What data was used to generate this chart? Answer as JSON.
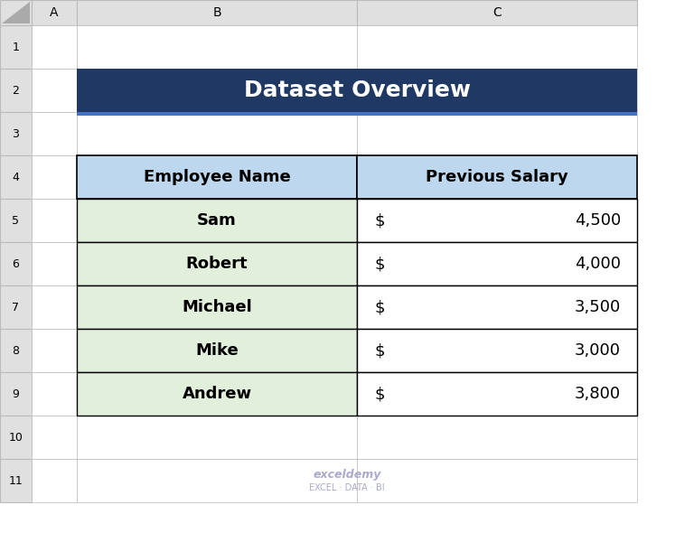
{
  "title": "Dataset Overview",
  "title_bg": "#1F3864",
  "title_color": "#FFFFFF",
  "header_bg": "#BDD7EE",
  "header_color": "#000000",
  "row_bg_name": "#E2EFDA",
  "row_bg_salary_left": "#FFFFFF",
  "border_color": "#000000",
  "columns": [
    "Employee Name",
    "Previous Salary"
  ],
  "employees": [
    "Sam",
    "Robert",
    "Michael",
    "Mike",
    "Andrew"
  ],
  "salaries": [
    "4,500",
    "4,000",
    "3,500",
    "3,000",
    "3,800"
  ],
  "excel_bg": "#FFFFFF",
  "col_header_bg": "#E0E0E0",
  "col_header_color": "#000000",
  "row_header_bg": "#E0E0E0",
  "grid_color": "#BBBBBB",
  "col_labels": [
    "A",
    "B",
    "C"
  ],
  "row_labels": [
    "1",
    "2",
    "3",
    "4",
    "5",
    "6",
    "7",
    "8",
    "9",
    "10",
    "11"
  ],
  "watermark_text": "exceldemy\nEXCEL · DATA · BI",
  "watermark_color": "#AAAACC"
}
